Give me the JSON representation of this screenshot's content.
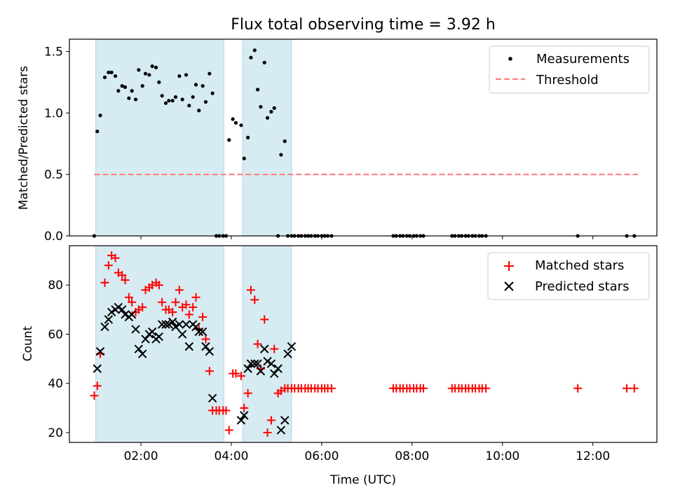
{
  "title": "Flux total observing time = 3.92 h",
  "xlabel": "Time (UTC)",
  "x_ticks": [
    "02:00",
    "04:00",
    "06:00",
    "08:00",
    "10:00",
    "12:00"
  ],
  "colors": {
    "span": "#add8e6",
    "threshold": "#ff7f7f",
    "matched": "#ff0000",
    "predicted": "#000000",
    "measurements": "#000000"
  },
  "chart_data": [
    {
      "type": "scatter",
      "panel": "top",
      "ylabel": "Matched/Predicted stars",
      "xlim": [
        "00:25",
        "13:25"
      ],
      "ylim": [
        0,
        1.6
      ],
      "y_ticks": [
        "0.0",
        "0.5",
        "1.0",
        "1.5"
      ],
      "shaded_intervals": [
        [
          "01:00",
          "03:50"
        ],
        [
          "04:15",
          "05:20"
        ]
      ],
      "legend": {
        "position": "top-right",
        "entries": [
          "Measurements",
          "Threshold"
        ]
      },
      "threshold": {
        "name": "Threshold",
        "y": 0.5,
        "x_range": [
          "00:58",
          "13:00"
        ]
      },
      "series": [
        {
          "name": "Measurements",
          "x": [
            "00:58",
            "01:02",
            "01:06",
            "01:12",
            "01:17",
            "01:21",
            "01:26",
            "01:30",
            "01:35",
            "01:39",
            "01:44",
            "01:48",
            "01:53",
            "01:57",
            "02:02",
            "02:06",
            "02:11",
            "02:15",
            "02:20",
            "02:24",
            "02:28",
            "02:33",
            "02:37",
            "02:42",
            "02:46",
            "02:51",
            "02:55",
            "03:00",
            "03:04",
            "03:09",
            "03:13",
            "03:17",
            "03:22",
            "03:26",
            "03:31",
            "03:35",
            "03:40",
            "03:44",
            "03:49",
            "03:53",
            "03:57",
            "04:02",
            "04:06",
            "04:13",
            "04:17",
            "04:22",
            "04:26",
            "04:31",
            "04:35",
            "04:39",
            "04:44",
            "04:48",
            "04:53",
            "04:57",
            "05:02",
            "05:06",
            "05:11",
            "05:15",
            "05:20",
            "05:24",
            "05:29",
            "05:33",
            "05:38",
            "05:42",
            "05:46",
            "05:51",
            "05:55",
            "06:00",
            "06:04",
            "06:08",
            "06:13",
            "07:35",
            "07:39",
            "07:44",
            "07:48",
            "07:53",
            "07:57",
            "08:02",
            "08:06",
            "08:11",
            "08:15",
            "08:53",
            "08:57",
            "09:02",
            "09:06",
            "09:11",
            "09:15",
            "09:20",
            "09:24",
            "09:29",
            "09:33",
            "09:38",
            "11:40",
            "12:45",
            "12:55"
          ],
          "y": [
            0.0,
            0.85,
            0.98,
            1.29,
            1.33,
            1.33,
            1.3,
            1.18,
            1.22,
            1.21,
            1.12,
            1.18,
            1.11,
            1.35,
            1.22,
            1.32,
            1.31,
            1.38,
            1.37,
            1.25,
            1.14,
            1.08,
            1.1,
            1.1,
            1.13,
            1.3,
            1.11,
            1.31,
            1.06,
            1.13,
            1.23,
            1.02,
            1.22,
            1.09,
            1.32,
            1.16,
            0.0,
            0.0,
            0.0,
            0.0,
            0.78,
            0.95,
            0.92,
            0.9,
            0.63,
            0.8,
            1.45,
            1.51,
            1.19,
            1.05,
            1.41,
            0.96,
            1.01,
            1.04,
            0.0,
            0.66,
            0.77,
            0.0,
            0.0,
            0.0,
            0.0,
            0.0,
            0.0,
            0.0,
            0.0,
            0.0,
            0.0,
            0.0,
            0.0,
            0.0,
            0.0,
            0.0,
            0.0,
            0.0,
            0.0,
            0.0,
            0.0,
            0.0,
            0.0,
            0.0,
            0.0,
            0.0,
            0.0,
            0.0,
            0.0,
            0.0,
            0.0,
            0.0,
            0.0,
            0.0,
            0.0,
            0.0,
            0.0,
            0.0,
            0.0
          ]
        }
      ]
    },
    {
      "type": "scatter",
      "panel": "bottom",
      "ylabel": "Count",
      "xlim": [
        "00:25",
        "13:25"
      ],
      "ylim": [
        16,
        96
      ],
      "y_ticks": [
        "20",
        "40",
        "60",
        "80"
      ],
      "shaded_intervals": [
        [
          "01:00",
          "03:50"
        ],
        [
          "04:15",
          "05:20"
        ]
      ],
      "legend": {
        "position": "top-right",
        "entries": [
          "Matched stars",
          "Predicted stars"
        ]
      },
      "series": [
        {
          "name": "Matched stars",
          "marker": "plus",
          "x": [
            "00:58",
            "01:02",
            "01:06",
            "01:12",
            "01:17",
            "01:21",
            "01:26",
            "01:30",
            "01:35",
            "01:39",
            "01:44",
            "01:48",
            "01:53",
            "01:57",
            "02:02",
            "02:06",
            "02:11",
            "02:15",
            "02:20",
            "02:24",
            "02:28",
            "02:33",
            "02:37",
            "02:42",
            "02:46",
            "02:51",
            "02:55",
            "03:00",
            "03:04",
            "03:09",
            "03:13",
            "03:17",
            "03:22",
            "03:26",
            "03:31",
            "03:35",
            "03:40",
            "03:44",
            "03:49",
            "03:53",
            "03:57",
            "04:02",
            "04:06",
            "04:13",
            "04:17",
            "04:22",
            "04:26",
            "04:31",
            "04:35",
            "04:39",
            "04:44",
            "04:48",
            "04:53",
            "04:57",
            "05:02",
            "05:06",
            "05:11",
            "05:15",
            "05:20",
            "05:24",
            "05:29",
            "05:33",
            "05:38",
            "05:42",
            "05:46",
            "05:51",
            "05:55",
            "06:00",
            "06:04",
            "06:08",
            "06:13",
            "07:35",
            "07:39",
            "07:44",
            "07:48",
            "07:53",
            "07:57",
            "08:02",
            "08:06",
            "08:11",
            "08:15",
            "08:53",
            "08:57",
            "09:02",
            "09:06",
            "09:11",
            "09:15",
            "09:20",
            "09:24",
            "09:29",
            "09:33",
            "09:38",
            "11:40",
            "12:45",
            "12:55"
          ],
          "y": [
            35,
            39,
            52,
            81,
            88,
            92,
            91,
            85,
            84,
            82,
            75,
            73,
            69,
            70,
            71,
            78,
            79,
            80,
            81,
            80,
            73,
            70,
            70,
            69,
            73,
            78,
            71,
            72,
            68,
            71,
            75,
            62,
            67,
            58,
            45,
            29,
            29,
            29,
            29,
            29,
            21,
            44,
            44,
            43,
            30,
            36,
            78,
            74,
            56,
            46,
            66,
            20,
            25,
            54,
            36,
            37,
            38,
            38,
            38,
            38,
            38,
            38,
            38,
            38,
            38,
            38,
            38,
            38,
            38,
            38,
            38,
            38,
            38,
            38,
            38,
            38,
            38,
            38,
            38,
            38,
            38,
            38,
            38,
            38,
            38,
            38,
            38,
            38,
            38,
            38,
            38,
            38,
            38,
            38,
            38
          ]
        },
        {
          "name": "Predicted stars",
          "marker": "x",
          "x": [
            "01:02",
            "01:06",
            "01:12",
            "01:17",
            "01:21",
            "01:26",
            "01:30",
            "01:35",
            "01:39",
            "01:44",
            "01:48",
            "01:53",
            "01:57",
            "02:02",
            "02:06",
            "02:11",
            "02:15",
            "02:20",
            "02:24",
            "02:28",
            "02:33",
            "02:37",
            "02:42",
            "02:46",
            "02:51",
            "02:55",
            "03:00",
            "03:04",
            "03:09",
            "03:13",
            "03:17",
            "03:22",
            "03:26",
            "03:31",
            "03:35",
            "04:13",
            "04:17",
            "04:22",
            "04:26",
            "04:31",
            "04:35",
            "04:39",
            "04:44",
            "04:48",
            "04:53",
            "04:57",
            "05:02",
            "05:06",
            "05:11",
            "05:15",
            "05:20"
          ],
          "y": [
            46,
            53,
            63,
            66,
            69,
            70,
            71,
            70,
            68,
            67,
            68,
            62,
            54,
            52,
            58,
            60,
            61,
            58,
            59,
            64,
            64,
            64,
            65,
            63,
            64,
            60,
            64,
            55,
            64,
            63,
            61,
            61,
            55,
            53,
            34,
            25,
            27,
            46,
            48,
            48,
            48,
            45,
            54,
            49,
            48,
            44,
            46,
            21,
            25,
            52,
            55
          ]
        }
      ]
    }
  ]
}
